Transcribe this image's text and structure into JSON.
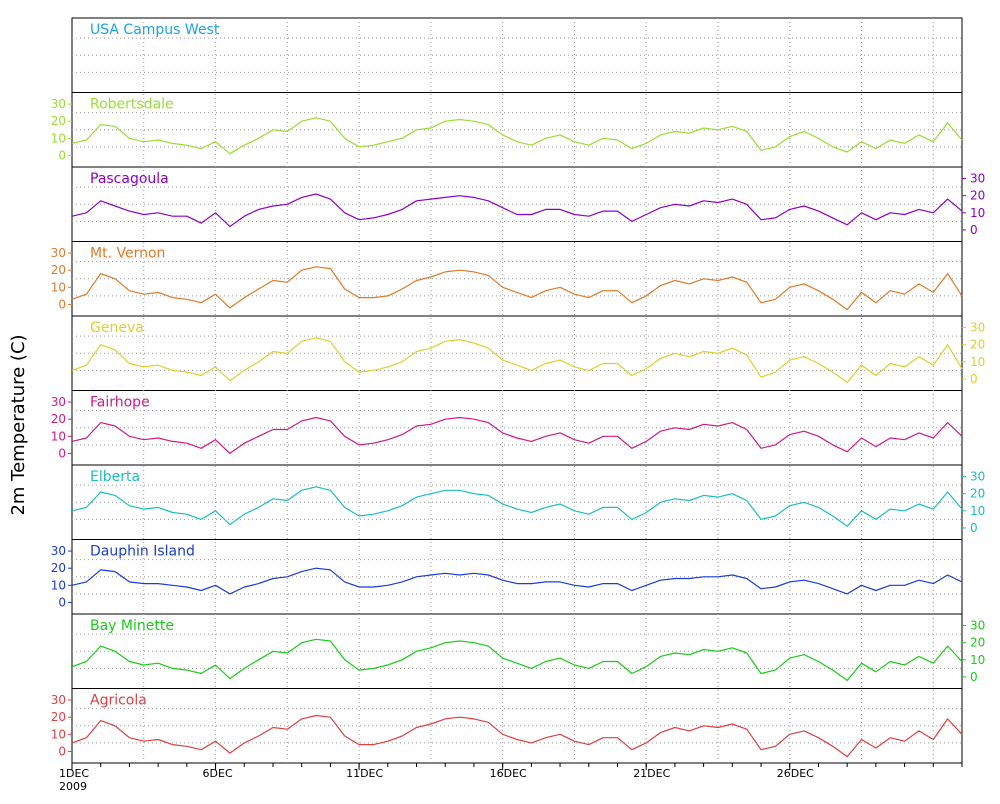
{
  "chart_data": {
    "type": "line",
    "ylabel": "2m Temperature (C)",
    "ylim": [
      -5,
      35
    ],
    "yticks": [
      0,
      10,
      20,
      30
    ],
    "x_tick_labels": [
      "1DEC",
      "6DEC",
      "11DEC",
      "16DEC",
      "21DEC",
      "26DEC"
    ],
    "x_tick_days": [
      1,
      6,
      11,
      16,
      21,
      26
    ],
    "x_year_label": "2009",
    "xlim_days": [
      1,
      32
    ],
    "grid": true,
    "panels": [
      {
        "name": "USA Campus West",
        "color": "#1aa3e8",
        "has_data": false,
        "axis_side": "none"
      },
      {
        "name": "Robertsdale",
        "color": "#99dd33",
        "has_data": true,
        "axis_side": "left",
        "x": [
          1,
          1.5,
          2,
          2.5,
          3,
          3.5,
          4,
          4.5,
          5,
          5.5,
          6,
          6.5,
          7,
          7.5,
          8,
          8.5,
          9,
          9.5,
          10,
          10.5,
          11,
          11.5,
          12,
          12.5,
          13,
          13.5,
          14,
          14.5,
          15,
          15.5,
          16,
          16.5,
          17,
          17.5,
          18,
          18.5,
          19,
          19.5,
          20,
          20.5,
          21,
          21.5,
          22,
          22.5,
          23,
          23.5,
          24,
          24.5,
          25,
          25.5,
          26,
          26.5,
          27,
          27.5,
          28,
          28.5,
          29,
          29.5,
          30,
          30.5,
          31,
          31.5,
          32
        ],
        "values": [
          7,
          9,
          18,
          17,
          10,
          8,
          9,
          7,
          6,
          4,
          8,
          1,
          6,
          10,
          15,
          14,
          20,
          22,
          20,
          10,
          5,
          6,
          8,
          10,
          15,
          16,
          20,
          21,
          20,
          18,
          12,
          8,
          6,
          10,
          12,
          8,
          6,
          10,
          9,
          4,
          7,
          12,
          14,
          13,
          16,
          15,
          17,
          14,
          3,
          5,
          11,
          14,
          10,
          5,
          2,
          8,
          4,
          9,
          7,
          12,
          8,
          19,
          9
        ]
      },
      {
        "name": "Pascagoula",
        "color": "#8e00c8",
        "has_data": true,
        "axis_side": "right",
        "x": [
          1,
          1.5,
          2,
          2.5,
          3,
          3.5,
          4,
          4.5,
          5,
          5.5,
          6,
          6.5,
          7,
          7.5,
          8,
          8.5,
          9,
          9.5,
          10,
          10.5,
          11,
          11.5,
          12,
          12.5,
          13,
          13.5,
          14,
          14.5,
          15,
          15.5,
          16,
          16.5,
          17,
          17.5,
          18,
          18.5,
          19,
          19.5,
          20,
          20.5,
          21,
          21.5,
          22,
          22.5,
          23,
          23.5,
          24,
          24.5,
          25,
          25.5,
          26,
          26.5,
          27,
          27.5,
          28,
          28.5,
          29,
          29.5,
          30,
          30.5,
          31,
          31.5,
          32
        ],
        "values": [
          8,
          10,
          17,
          14,
          11,
          9,
          10,
          8,
          8,
          4,
          10,
          2,
          8,
          12,
          14,
          15,
          19,
          21,
          18,
          10,
          6,
          7,
          9,
          12,
          17,
          18,
          19,
          20,
          19,
          17,
          13,
          9,
          9,
          12,
          12,
          9,
          8,
          11,
          11,
          5,
          9,
          13,
          15,
          14,
          17,
          16,
          18,
          15,
          6,
          7,
          12,
          14,
          11,
          7,
          3,
          10,
          6,
          10,
          9,
          12,
          10,
          18,
          11
        ]
      },
      {
        "name": "Mt. Vernon",
        "color": "#e07a2a",
        "has_data": true,
        "axis_side": "left",
        "x": [
          1,
          1.5,
          2,
          2.5,
          3,
          3.5,
          4,
          4.5,
          5,
          5.5,
          6,
          6.5,
          7,
          7.5,
          8,
          8.5,
          9,
          9.5,
          10,
          10.5,
          11,
          11.5,
          12,
          12.5,
          13,
          13.5,
          14,
          14.5,
          15,
          15.5,
          16,
          16.5,
          17,
          17.5,
          18,
          18.5,
          19,
          19.5,
          20,
          20.5,
          21,
          21.5,
          22,
          22.5,
          23,
          23.5,
          24,
          24.5,
          25,
          25.5,
          26,
          26.5,
          27,
          27.5,
          28,
          28.5,
          29,
          29.5,
          30,
          30.5,
          31,
          31.5,
          32
        ],
        "values": [
          3,
          6,
          18,
          15,
          8,
          6,
          7,
          4,
          3,
          1,
          6,
          -2,
          4,
          9,
          14,
          13,
          20,
          22,
          21,
          9,
          4,
          4,
          5,
          9,
          14,
          16,
          19,
          20,
          19,
          17,
          10,
          7,
          4,
          8,
          10,
          6,
          4,
          8,
          8,
          1,
          5,
          11,
          14,
          12,
          15,
          14,
          16,
          13,
          1,
          3,
          10,
          12,
          8,
          3,
          -3,
          7,
          1,
          8,
          6,
          12,
          7,
          18,
          5
        ]
      },
      {
        "name": "Geneva",
        "color": "#ddd02e",
        "has_data": true,
        "axis_side": "right",
        "x": [
          1,
          1.5,
          2,
          2.5,
          3,
          3.5,
          4,
          4.5,
          5,
          5.5,
          6,
          6.5,
          7,
          7.5,
          8,
          8.5,
          9,
          9.5,
          10,
          10.5,
          11,
          11.5,
          12,
          12.5,
          13,
          13.5,
          14,
          14.5,
          15,
          15.5,
          16,
          16.5,
          17,
          17.5,
          18,
          18.5,
          19,
          19.5,
          20,
          20.5,
          21,
          21.5,
          22,
          22.5,
          23,
          23.5,
          24,
          24.5,
          25,
          25.5,
          26,
          26.5,
          27,
          27.5,
          28,
          28.5,
          29,
          29.5,
          30,
          30.5,
          31,
          31.5,
          32
        ],
        "values": [
          5,
          8,
          20,
          17,
          9,
          7,
          8,
          5,
          4,
          2,
          7,
          -1,
          5,
          10,
          16,
          15,
          22,
          24,
          22,
          10,
          4,
          5,
          7,
          10,
          16,
          18,
          22,
          23,
          21,
          18,
          11,
          8,
          5,
          9,
          11,
          7,
          5,
          9,
          9,
          2,
          6,
          12,
          15,
          13,
          16,
          15,
          18,
          14,
          1,
          4,
          11,
          13,
          9,
          4,
          -2,
          8,
          2,
          9,
          7,
          13,
          8,
          20,
          6
        ]
      },
      {
        "name": "Fairhope",
        "color": "#d01a8a",
        "has_data": true,
        "axis_side": "left",
        "x": [
          1,
          1.5,
          2,
          2.5,
          3,
          3.5,
          4,
          4.5,
          5,
          5.5,
          6,
          6.5,
          7,
          7.5,
          8,
          8.5,
          9,
          9.5,
          10,
          10.5,
          11,
          11.5,
          12,
          12.5,
          13,
          13.5,
          14,
          14.5,
          15,
          15.5,
          16,
          16.5,
          17,
          17.5,
          18,
          18.5,
          19,
          19.5,
          20,
          20.5,
          21,
          21.5,
          22,
          22.5,
          23,
          23.5,
          24,
          24.5,
          25,
          25.5,
          26,
          26.5,
          27,
          27.5,
          28,
          28.5,
          29,
          29.5,
          30,
          30.5,
          31,
          31.5,
          32
        ],
        "values": [
          7,
          9,
          18,
          16,
          10,
          8,
          9,
          7,
          6,
          3,
          8,
          0,
          6,
          10,
          14,
          14,
          19,
          21,
          19,
          10,
          5,
          6,
          8,
          11,
          16,
          17,
          20,
          21,
          20,
          18,
          12,
          9,
          7,
          10,
          12,
          8,
          6,
          10,
          10,
          3,
          7,
          13,
          15,
          14,
          17,
          16,
          18,
          14,
          3,
          5,
          11,
          13,
          10,
          5,
          1,
          9,
          4,
          9,
          8,
          12,
          9,
          18,
          10
        ]
      },
      {
        "name": "Elberta",
        "color": "#1abfbf",
        "has_data": true,
        "axis_side": "right",
        "x": [
          1,
          1.5,
          2,
          2.5,
          3,
          3.5,
          4,
          4.5,
          5,
          5.5,
          6,
          6.5,
          7,
          7.5,
          8,
          8.5,
          9,
          9.5,
          10,
          10.5,
          11,
          11.5,
          12,
          12.5,
          13,
          13.5,
          14,
          14.5,
          15,
          15.5,
          16,
          16.5,
          17,
          17.5,
          18,
          18.5,
          19,
          19.5,
          20,
          20.5,
          21,
          21.5,
          22,
          22.5,
          23,
          23.5,
          24,
          24.5,
          25,
          25.5,
          26,
          26.5,
          27,
          27.5,
          28,
          28.5,
          29,
          29.5,
          30,
          30.5,
          31,
          31.5,
          32
        ],
        "values": [
          10,
          12,
          21,
          19,
          13,
          11,
          12,
          9,
          8,
          5,
          10,
          2,
          8,
          12,
          17,
          16,
          22,
          24,
          22,
          12,
          7,
          8,
          10,
          13,
          18,
          20,
          22,
          22,
          20,
          19,
          14,
          11,
          9,
          12,
          14,
          10,
          8,
          12,
          12,
          5,
          9,
          15,
          17,
          16,
          19,
          18,
          20,
          16,
          5,
          7,
          13,
          15,
          12,
          7,
          1,
          10,
          5,
          11,
          10,
          14,
          11,
          21,
          11
        ]
      },
      {
        "name": "Dauphin Island",
        "color": "#1a3cd8",
        "has_data": true,
        "axis_side": "left",
        "x": [
          1,
          1.5,
          2,
          2.5,
          3,
          3.5,
          4,
          4.5,
          5,
          5.5,
          6,
          6.5,
          7,
          7.5,
          8,
          8.5,
          9,
          9.5,
          10,
          10.5,
          11,
          11.5,
          12,
          12.5,
          13,
          13.5,
          14,
          14.5,
          15,
          15.5,
          16,
          16.5,
          17,
          17.5,
          18,
          18.5,
          19,
          19.5,
          20,
          20.5,
          21,
          21.5,
          22,
          22.5,
          23,
          23.5,
          24,
          24.5,
          25,
          25.5,
          26,
          26.5,
          27,
          27.5,
          28,
          28.5,
          29,
          29.5,
          30,
          30.5,
          31,
          31.5,
          32
        ],
        "values": [
          10,
          12,
          19,
          18,
          12,
          11,
          11,
          10,
          9,
          7,
          10,
          5,
          9,
          11,
          14,
          15,
          18,
          20,
          19,
          12,
          9,
          9,
          10,
          12,
          15,
          16,
          17,
          16,
          17,
          16,
          13,
          11,
          11,
          12,
          12,
          10,
          9,
          11,
          11,
          7,
          10,
          13,
          14,
          14,
          15,
          15,
          16,
          14,
          8,
          9,
          12,
          13,
          11,
          8,
          5,
          10,
          7,
          10,
          10,
          13,
          11,
          16,
          12
        ]
      },
      {
        "name": "Bay Minette",
        "color": "#1acc1a",
        "has_data": true,
        "axis_side": "right",
        "x": [
          1,
          1.5,
          2,
          2.5,
          3,
          3.5,
          4,
          4.5,
          5,
          5.5,
          6,
          6.5,
          7,
          7.5,
          8,
          8.5,
          9,
          9.5,
          10,
          10.5,
          11,
          11.5,
          12,
          12.5,
          13,
          13.5,
          14,
          14.5,
          15,
          15.5,
          16,
          16.5,
          17,
          17.5,
          18,
          18.5,
          19,
          19.5,
          20,
          20.5,
          21,
          21.5,
          22,
          22.5,
          23,
          23.5,
          24,
          24.5,
          25,
          25.5,
          26,
          26.5,
          27,
          27.5,
          28,
          28.5,
          29,
          29.5,
          30,
          30.5,
          31,
          31.5,
          32
        ],
        "values": [
          6,
          9,
          18,
          15,
          9,
          7,
          8,
          5,
          4,
          2,
          7,
          -1,
          5,
          10,
          15,
          14,
          20,
          22,
          21,
          10,
          4,
          5,
          7,
          10,
          15,
          17,
          20,
          21,
          20,
          18,
          11,
          8,
          5,
          9,
          11,
          7,
          5,
          9,
          9,
          2,
          6,
          12,
          14,
          13,
          16,
          15,
          17,
          14,
          2,
          4,
          11,
          13,
          9,
          4,
          -2,
          8,
          3,
          9,
          7,
          12,
          8,
          18,
          9
        ]
      },
      {
        "name": "Agricola",
        "color": "#e04040",
        "has_data": true,
        "axis_side": "left",
        "x": [
          1,
          1.5,
          2,
          2.5,
          3,
          3.5,
          4,
          4.5,
          5,
          5.5,
          6,
          6.5,
          7,
          7.5,
          8,
          8.5,
          9,
          9.5,
          10,
          10.5,
          11,
          11.5,
          12,
          12.5,
          13,
          13.5,
          14,
          14.5,
          15,
          15.5,
          16,
          16.5,
          17,
          17.5,
          18,
          18.5,
          19,
          19.5,
          20,
          20.5,
          21,
          21.5,
          22,
          22.5,
          23,
          23.5,
          24,
          24.5,
          25,
          25.5,
          26,
          26.5,
          27,
          27.5,
          28,
          28.5,
          29,
          29.5,
          30,
          30.5,
          31,
          31.5,
          32
        ],
        "values": [
          5,
          8,
          18,
          15,
          8,
          6,
          7,
          4,
          3,
          1,
          6,
          -1,
          5,
          9,
          14,
          13,
          19,
          21,
          20,
          9,
          4,
          4,
          6,
          9,
          14,
          16,
          19,
          20,
          19,
          17,
          10,
          7,
          5,
          8,
          10,
          6,
          4,
          8,
          8,
          1,
          5,
          11,
          14,
          12,
          15,
          14,
          16,
          13,
          1,
          3,
          10,
          12,
          8,
          3,
          -3,
          7,
          2,
          8,
          6,
          12,
          7,
          19,
          10
        ]
      }
    ]
  }
}
